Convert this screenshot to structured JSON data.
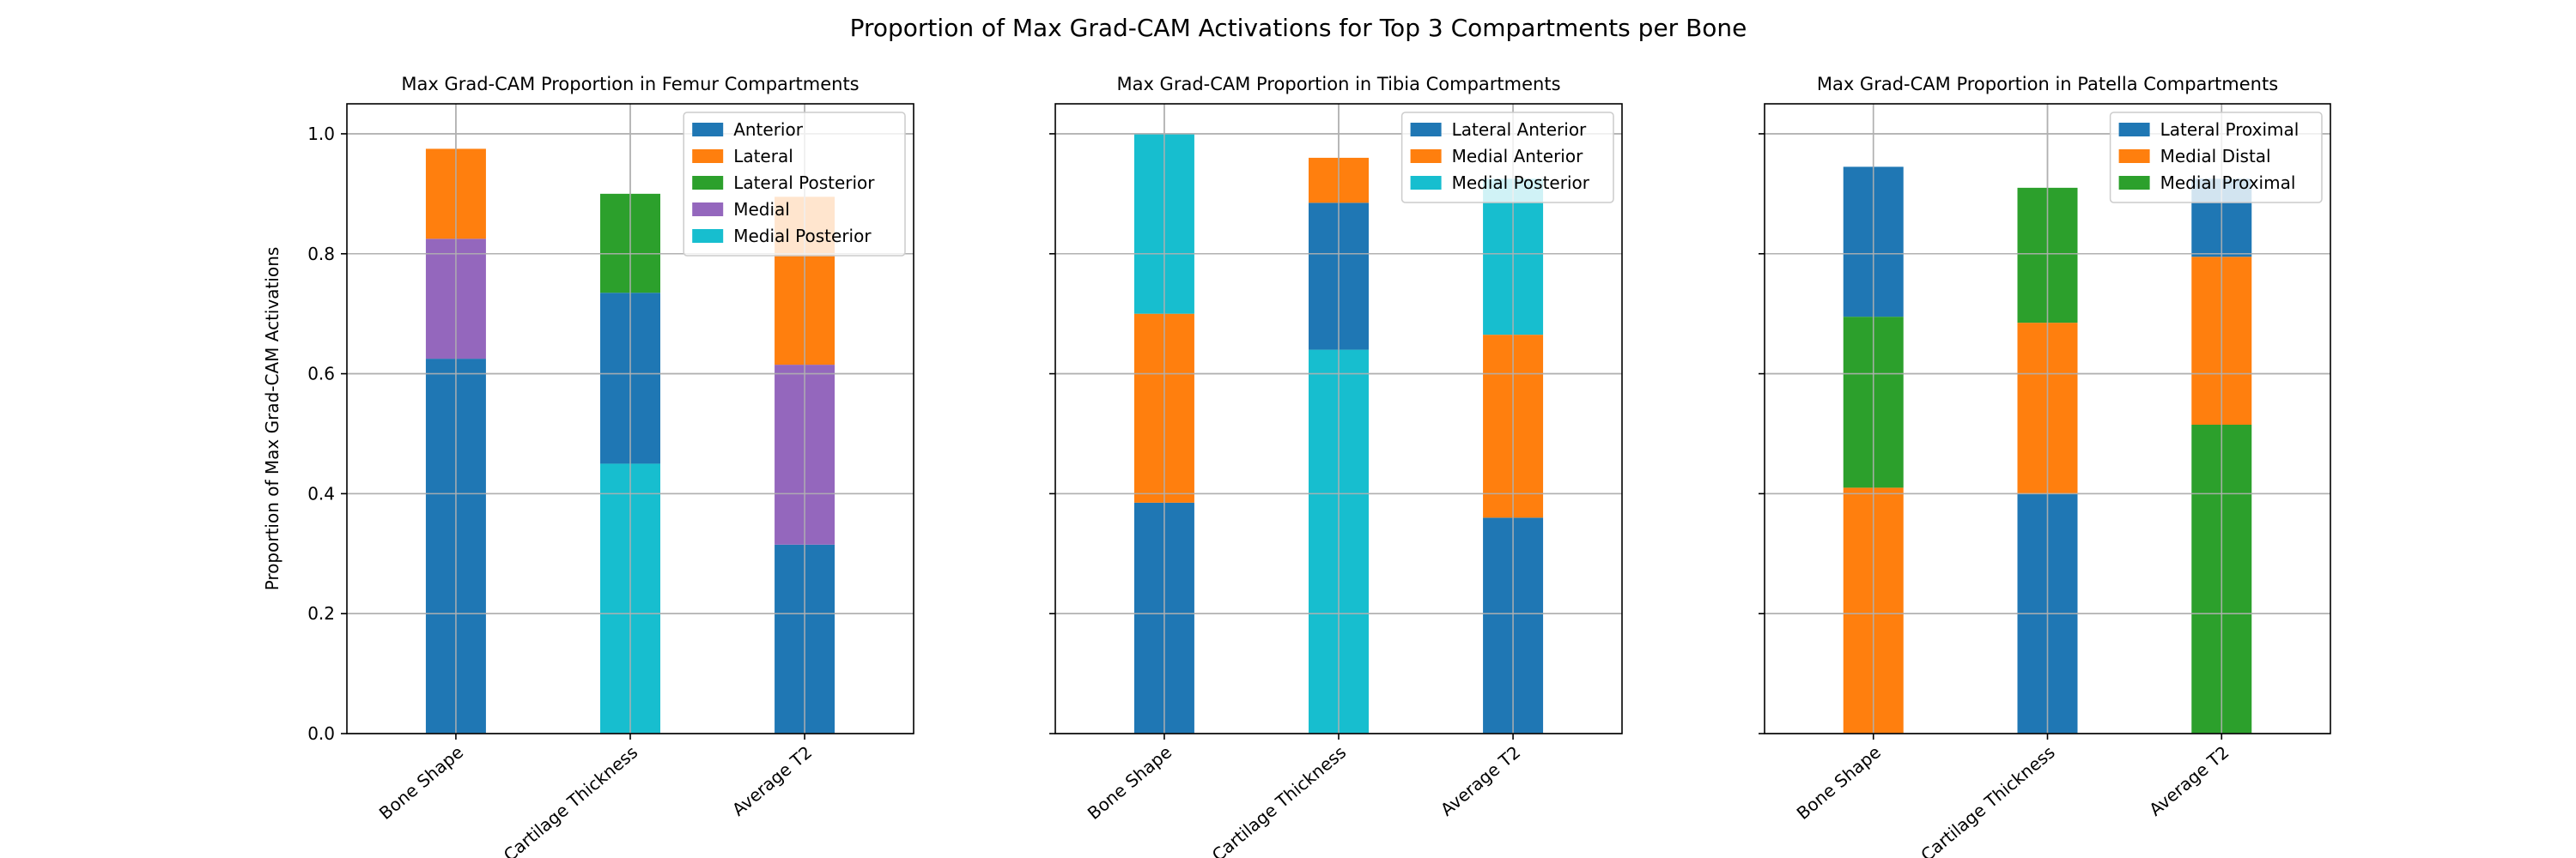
{
  "figure_title": "Proportion of Max Grad-CAM Activations for Top 3 Compartments per Bone",
  "colors": {
    "Anterior": "#1f77b4",
    "Lateral": "#ff7f0e",
    "Lateral Posterior": "#2ca02c",
    "Medial": "#9467bd",
    "Medial Posterior": "#17becf",
    "Lateral Anterior": "#1f77b4",
    "Medial Anterior": "#ff7f0e",
    "Lateral Proximal": "#1f77b4",
    "Medial Distal": "#ff7f0e",
    "Medial Proximal": "#2ca02c"
  },
  "chart_data": [
    {
      "type": "bar",
      "stacked": true,
      "title": "Max Grad-CAM Proportion in Femur Compartments",
      "categories": [
        "Bone Shape",
        "Cartilage Thickness",
        "Average T2"
      ],
      "xlabel": "",
      "ylabel": "Proportion of Max Grad-CAM Activations",
      "ylim": [
        0,
        1.05
      ],
      "yticks": [
        "0.0",
        "0.2",
        "0.4",
        "0.6",
        "0.8",
        "1.0"
      ],
      "grid": true,
      "legend_position": "top-right",
      "legend": [
        "Anterior",
        "Lateral",
        "Lateral Posterior",
        "Medial",
        "Medial Posterior"
      ],
      "bars": [
        {
          "category": "Bone Shape",
          "segments": [
            {
              "name": "Anterior",
              "value": 0.625
            },
            {
              "name": "Medial",
              "value": 0.2
            },
            {
              "name": "Lateral",
              "value": 0.15
            }
          ]
        },
        {
          "category": "Cartilage Thickness",
          "segments": [
            {
              "name": "Medial Posterior",
              "value": 0.45
            },
            {
              "name": "Anterior",
              "value": 0.285
            },
            {
              "name": "Lateral Posterior",
              "value": 0.165
            }
          ]
        },
        {
          "category": "Average T2",
          "segments": [
            {
              "name": "Anterior",
              "value": 0.315
            },
            {
              "name": "Medial",
              "value": 0.3
            },
            {
              "name": "Lateral",
              "value": 0.28
            }
          ]
        }
      ]
    },
    {
      "type": "bar",
      "stacked": true,
      "title": "Max Grad-CAM Proportion in Tibia Compartments",
      "categories": [
        "Bone Shape",
        "Cartilage Thickness",
        "Average T2"
      ],
      "xlabel": "",
      "ylabel": "",
      "ylim": [
        0,
        1.05
      ],
      "yticks": [],
      "grid": true,
      "legend_position": "top-right",
      "legend": [
        "Lateral Anterior",
        "Medial Anterior",
        "Medial Posterior"
      ],
      "bars": [
        {
          "category": "Bone Shape",
          "segments": [
            {
              "name": "Lateral Anterior",
              "value": 0.385
            },
            {
              "name": "Medial Anterior",
              "value": 0.315
            },
            {
              "name": "Medial Posterior",
              "value": 0.3
            }
          ]
        },
        {
          "category": "Cartilage Thickness",
          "segments": [
            {
              "name": "Medial Posterior",
              "value": 0.64
            },
            {
              "name": "Lateral Anterior",
              "value": 0.245
            },
            {
              "name": "Medial Anterior",
              "value": 0.075
            }
          ]
        },
        {
          "category": "Average T2",
          "segments": [
            {
              "name": "Lateral Anterior",
              "value": 0.36
            },
            {
              "name": "Medial Anterior",
              "value": 0.305
            },
            {
              "name": "Medial Posterior",
              "value": 0.26
            }
          ]
        }
      ]
    },
    {
      "type": "bar",
      "stacked": true,
      "title": "Max Grad-CAM Proportion in Patella Compartments",
      "categories": [
        "Bone Shape",
        "Cartilage Thickness",
        "Average T2"
      ],
      "xlabel": "",
      "ylabel": "",
      "ylim": [
        0,
        1.05
      ],
      "yticks": [],
      "grid": true,
      "legend_position": "top-right",
      "legend": [
        "Lateral Proximal",
        "Medial Distal",
        "Medial Proximal"
      ],
      "bars": [
        {
          "category": "Bone Shape",
          "segments": [
            {
              "name": "Medial Distal",
              "value": 0.41
            },
            {
              "name": "Medial Proximal",
              "value": 0.285
            },
            {
              "name": "Lateral Proximal",
              "value": 0.25
            }
          ]
        },
        {
          "category": "Cartilage Thickness",
          "segments": [
            {
              "name": "Lateral Proximal",
              "value": 0.4
            },
            {
              "name": "Medial Distal",
              "value": 0.285
            },
            {
              "name": "Medial Proximal",
              "value": 0.225
            }
          ]
        },
        {
          "category": "Average T2",
          "segments": [
            {
              "name": "Medial Proximal",
              "value": 0.515
            },
            {
              "name": "Medial Distal",
              "value": 0.28
            },
            {
              "name": "Lateral Proximal",
              "value": 0.13
            }
          ]
        }
      ]
    }
  ]
}
